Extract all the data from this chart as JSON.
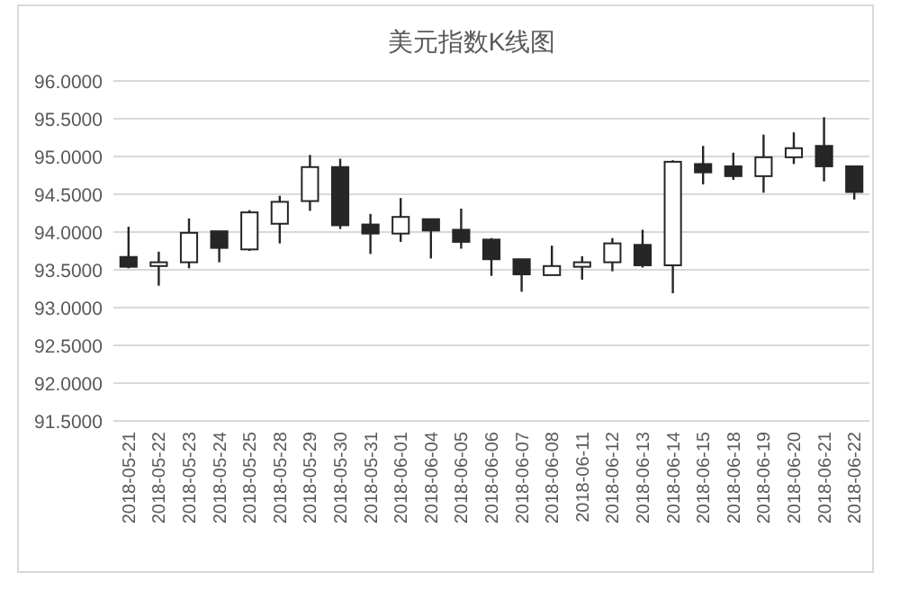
{
  "chart_data": {
    "type": "candlestick",
    "title": "美元指数K线图",
    "categories": [
      "2018-05-21",
      "2018-05-22",
      "2018-05-23",
      "2018-05-24",
      "2018-05-25",
      "2018-05-28",
      "2018-05-29",
      "2018-05-30",
      "2018-05-31",
      "2018-06-01",
      "2018-06-04",
      "2018-06-05",
      "2018-06-06",
      "2018-06-07",
      "2018-06-08",
      "2018-06-11",
      "2018-06-12",
      "2018-06-13",
      "2018-06-14",
      "2018-06-15",
      "2018-06-18",
      "2018-06-19",
      "2018-06-20",
      "2018-06-21",
      "2018-06-22"
    ],
    "ohlc": [
      [
        93.67,
        94.07,
        93.52,
        93.54
      ],
      [
        93.55,
        93.74,
        93.29,
        93.6
      ],
      [
        93.6,
        94.18,
        93.52,
        93.99
      ],
      [
        94.01,
        94.01,
        93.6,
        93.79
      ],
      [
        93.77,
        94.29,
        93.75,
        94.26
      ],
      [
        94.11,
        94.48,
        93.85,
        94.4
      ],
      [
        94.41,
        95.02,
        94.28,
        94.86
      ],
      [
        94.86,
        94.97,
        94.04,
        94.09
      ],
      [
        94.1,
        94.24,
        93.71,
        93.98
      ],
      [
        93.98,
        94.45,
        93.87,
        94.2
      ],
      [
        94.17,
        94.17,
        93.65,
        94.02
      ],
      [
        94.03,
        94.31,
        93.78,
        93.87
      ],
      [
        93.9,
        93.92,
        93.42,
        93.64
      ],
      [
        93.64,
        93.64,
        93.21,
        93.44
      ],
      [
        93.43,
        93.82,
        93.43,
        93.55
      ],
      [
        93.54,
        93.68,
        93.37,
        93.6
      ],
      [
        93.6,
        93.92,
        93.48,
        93.85
      ],
      [
        93.83,
        94.03,
        93.53,
        93.56
      ],
      [
        93.56,
        94.95,
        93.19,
        94.93
      ],
      [
        94.9,
        95.14,
        94.63,
        94.79
      ],
      [
        94.87,
        95.05,
        94.69,
        94.74
      ],
      [
        94.74,
        95.29,
        94.52,
        94.99
      ],
      [
        94.99,
        95.32,
        94.9,
        95.11
      ],
      [
        95.14,
        95.52,
        94.67,
        94.87
      ],
      [
        94.87,
        94.87,
        94.43,
        94.53
      ]
    ],
    "ylim": [
      91.5,
      96
    ],
    "yticks": [
      {
        "value": 91.5,
        "label": "91.5000"
      },
      {
        "value": 92,
        "label": "92.0000"
      },
      {
        "value": 92.5,
        "label": "92.5000"
      },
      {
        "value": 93,
        "label": "93.0000"
      },
      {
        "value": 93.5,
        "label": "93.5000"
      },
      {
        "value": 94,
        "label": "94.0000"
      },
      {
        "value": 94.5,
        "label": "94.5000"
      },
      {
        "value": 95,
        "label": "95.0000"
      },
      {
        "value": 95.5,
        "label": "95.5000"
      },
      {
        "value": 96,
        "label": "96.0000"
      }
    ],
    "grid": "y"
  }
}
